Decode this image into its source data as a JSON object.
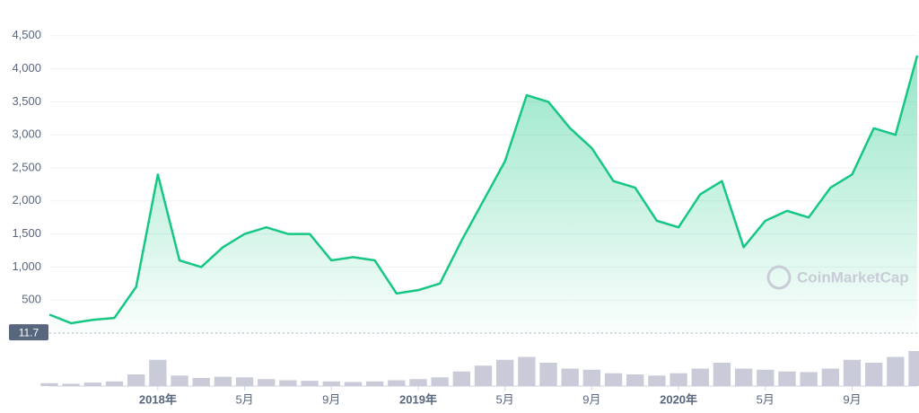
{
  "chart_data": {
    "type": "line",
    "x": [
      "2017-08",
      "2017-09",
      "2017-10",
      "2017-11",
      "2017-12",
      "2018-01",
      "2018-02",
      "2018-03",
      "2018-04",
      "2018-05",
      "2018-06",
      "2018-07",
      "2018-08",
      "2018-09",
      "2018-10",
      "2018-11",
      "2018-12",
      "2019-01",
      "2019-02",
      "2019-03",
      "2019-04",
      "2019-05",
      "2019-06",
      "2019-07",
      "2019-08",
      "2019-09",
      "2019-10",
      "2019-11",
      "2019-12",
      "2020-01",
      "2020-02",
      "2020-03",
      "2020-04",
      "2020-05",
      "2020-06",
      "2020-07",
      "2020-08",
      "2020-09",
      "2020-10",
      "2020-11",
      "2020-12"
    ],
    "series": [
      {
        "color": "#16c784",
        "values": [
          280,
          150,
          200,
          230,
          700,
          2400,
          1100,
          1000,
          1300,
          1500,
          1600,
          1500,
          1500,
          1100,
          1150,
          1100,
          600,
          650,
          750,
          1400,
          2000,
          2600,
          3600,
          3500,
          3100,
          2800,
          2300,
          2200,
          1700,
          1600,
          2100,
          2300,
          1300,
          1700,
          1850,
          1750,
          2200,
          2400,
          3100,
          3000,
          4200
        ]
      }
    ],
    "volume": {
      "color": "#c9ccd8",
      "ylim": [
        0,
        100
      ],
      "values": [
        5,
        4,
        6,
        8,
        20,
        45,
        18,
        14,
        16,
        15,
        12,
        10,
        9,
        8,
        7,
        8,
        10,
        12,
        15,
        25,
        35,
        45,
        50,
        40,
        30,
        28,
        22,
        20,
        18,
        22,
        30,
        40,
        30,
        28,
        25,
        24,
        30,
        45,
        40,
        50,
        60
      ]
    },
    "ylim": [
      0,
      5000
    ],
    "yticks": [
      500,
      {
        "value": 1000,
        "label": "1,000"
      },
      {
        "value": 1500,
        "label": "1,500"
      },
      {
        "value": 2000,
        "label": "2,000"
      },
      {
        "value": 2500,
        "label": "2,500"
      },
      {
        "value": 3000,
        "label": "3,000"
      },
      {
        "value": 3500,
        "label": "3,500"
      },
      {
        "value": 4000,
        "label": "4,000"
      },
      {
        "value": 4500,
        "label": "4,500"
      }
    ],
    "xticks": [
      {
        "value": "2018-01",
        "label": "2018年"
      },
      {
        "value": "2018-05",
        "label": "5月"
      },
      {
        "value": "2018-09",
        "label": "9月"
      },
      {
        "value": "2019-01",
        "label": "2019年"
      },
      {
        "value": "2019-05",
        "label": "5月"
      },
      {
        "value": "2019-09",
        "label": "9月"
      },
      {
        "value": "2020-01",
        "label": "2020年"
      },
      {
        "value": "2020-05",
        "label": "5月"
      },
      {
        "value": "2020-09",
        "label": "9月"
      }
    ],
    "price_marker": 11.7,
    "watermark": "CoinMarketCap",
    "grid": true
  }
}
